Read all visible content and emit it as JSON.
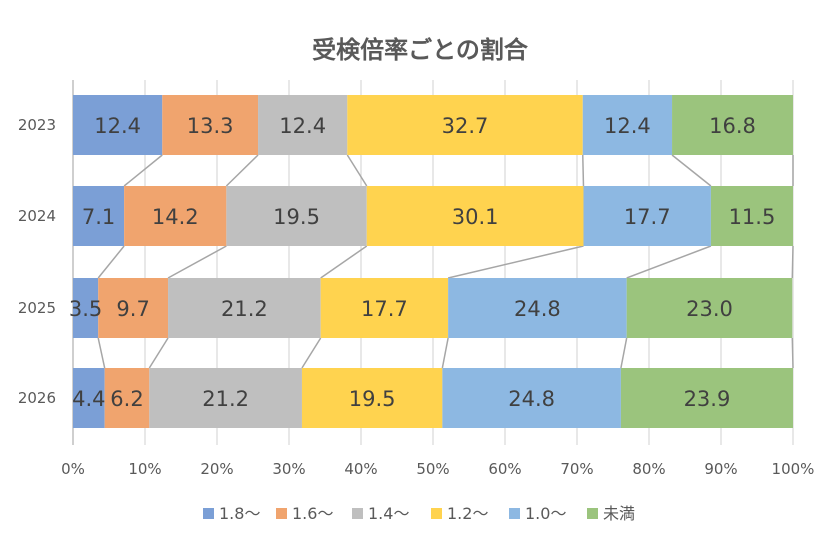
{
  "chart_data": {
    "type": "bar",
    "stacked": "percent",
    "orientation": "horizontal",
    "title": "受検倍率ごとの割合",
    "categories": [
      "2023",
      "2024",
      "2025",
      "2026"
    ],
    "series": [
      {
        "name": "1.8〜",
        "color": "#7b9fd6",
        "values": [
          12.4,
          7.1,
          3.5,
          4.4
        ]
      },
      {
        "name": "1.6〜",
        "color": "#f0a46e",
        "values": [
          13.3,
          14.2,
          9.7,
          6.2
        ]
      },
      {
        "name": "1.4〜",
        "color": "#bfbfbf",
        "values": [
          12.4,
          19.5,
          21.2,
          21.2
        ]
      },
      {
        "name": "1.2〜",
        "color": "#ffd34f",
        "values": [
          32.7,
          30.1,
          17.7,
          19.5
        ]
      },
      {
        "name": "1.0〜",
        "color": "#8db8e2",
        "values": [
          12.4,
          17.7,
          24.8,
          24.8
        ]
      },
      {
        "name": "未満",
        "color": "#9bc47d",
        "values": [
          16.8,
          11.5,
          23.0,
          23.9
        ]
      }
    ],
    "xticks": [
      "0%",
      "10%",
      "20%",
      "30%",
      "40%",
      "50%",
      "60%",
      "70%",
      "80%",
      "90%",
      "100%"
    ],
    "xlim": [
      0,
      100
    ],
    "grid": true,
    "series_lines": true,
    "legend": "bottom"
  }
}
